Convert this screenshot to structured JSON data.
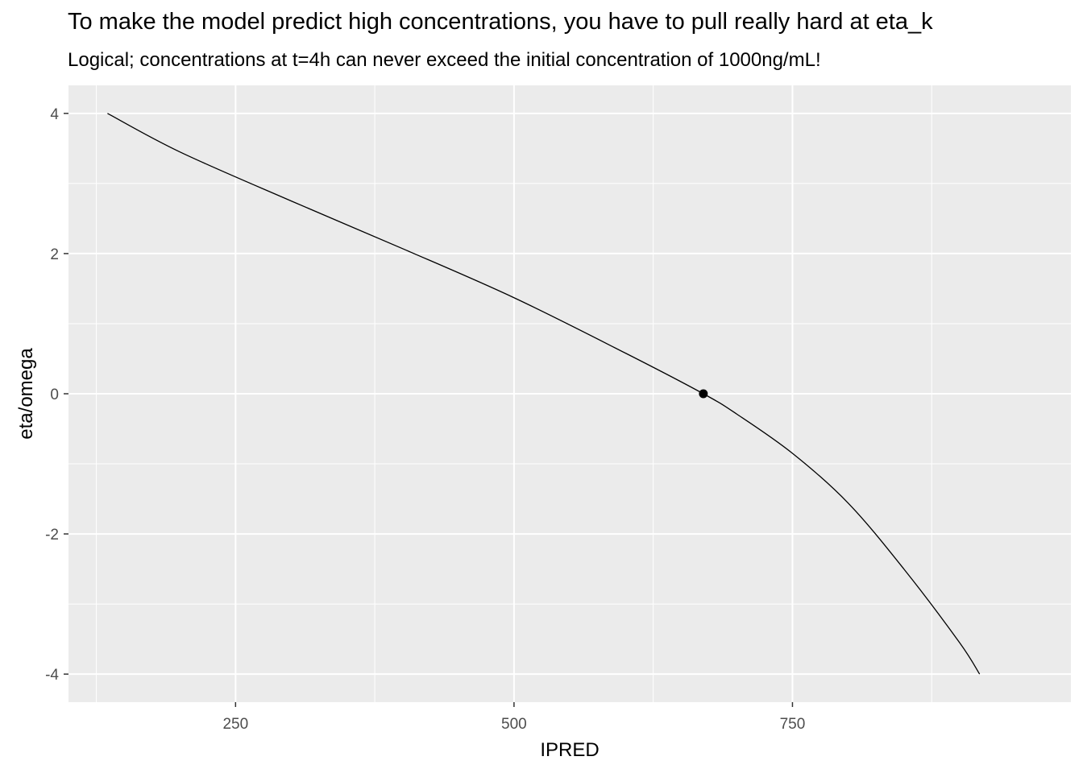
{
  "chart_data": {
    "type": "line",
    "title": "To make the model predict high concentrations, you have to pull really hard at eta_k",
    "subtitle": "Logical; concentrations at t=4h can never exceed the initial concentration of 1000ng/mL!",
    "xlabel": "IPRED",
    "ylabel": "eta/omega",
    "xlim": [
      100,
      1000
    ],
    "ylim": [
      -4.4,
      4.4
    ],
    "x_ticks": [
      250,
      500,
      750
    ],
    "x_tick_labels": [
      "250",
      "500",
      "750"
    ],
    "y_ticks": [
      -4,
      -2,
      0,
      2,
      4
    ],
    "y_tick_labels": [
      "-4",
      "-2",
      "0",
      "2",
      "4"
    ],
    "grid": true,
    "colors": {
      "panel": "#ebebeb",
      "grid": "#ffffff",
      "line": "#000000",
      "point": "#000000"
    },
    "series": [
      {
        "x": [
          135,
          200,
          300,
          400,
          500,
          600,
          670,
          700,
          750,
          800,
          850,
          900,
          918
        ],
        "y": [
          4.0,
          3.45,
          2.75,
          2.07,
          1.37,
          0.58,
          0.0,
          -0.29,
          -0.85,
          -1.56,
          -2.5,
          -3.55,
          -4.0
        ]
      }
    ],
    "points": [
      {
        "x": 670,
        "y": 0
      }
    ]
  }
}
